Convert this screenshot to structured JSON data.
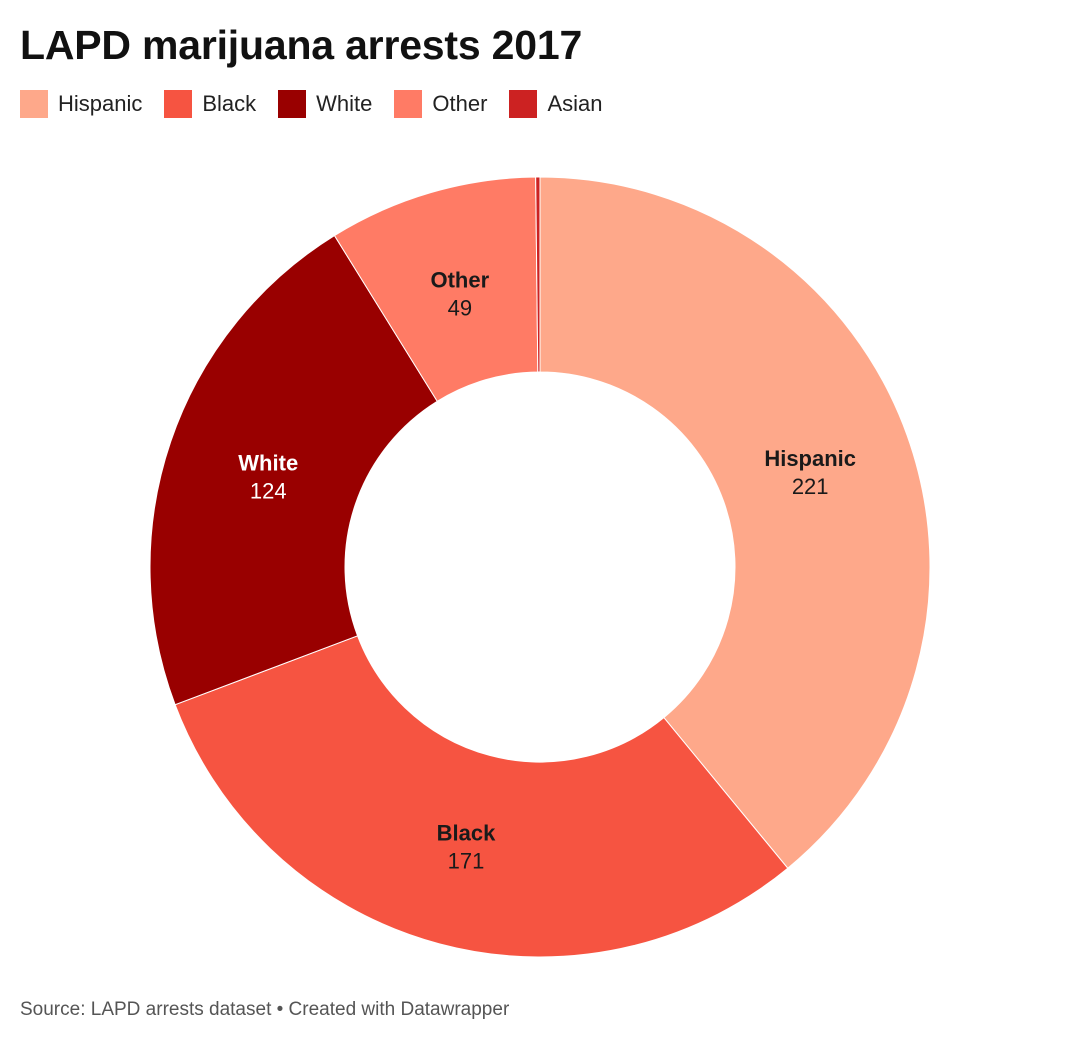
{
  "header": {
    "title": "LAPD marijuana arrests 2017"
  },
  "footer": {
    "source": "Source: LAPD arrests dataset • Created with Datawrapper"
  },
  "chart_data": {
    "type": "pie",
    "variant": "donut",
    "title": "LAPD marijuana arrests 2017",
    "legend_position": "top-left",
    "categories": [
      "Hispanic",
      "Black",
      "White",
      "Other",
      "Asian"
    ],
    "values": [
      221,
      171,
      124,
      49,
      1
    ],
    "colors": [
      "#fea88a",
      "#f65441",
      "#990000",
      "#ff7b65",
      "#cc2222"
    ],
    "label_colors": [
      "#1a1a1a",
      "#1a1a1a",
      "#ffffff",
      "#1a1a1a",
      "#1a1a1a"
    ],
    "data_labels": [
      {
        "name": "Hispanic",
        "value": "221",
        "visible": true
      },
      {
        "name": "Black",
        "value": "171",
        "visible": true
      },
      {
        "name": "White",
        "value": "124",
        "visible": true
      },
      {
        "name": "Other",
        "value": "49",
        "visible": true
      },
      {
        "name": "Asian",
        "value": "1",
        "visible": false
      }
    ]
  }
}
